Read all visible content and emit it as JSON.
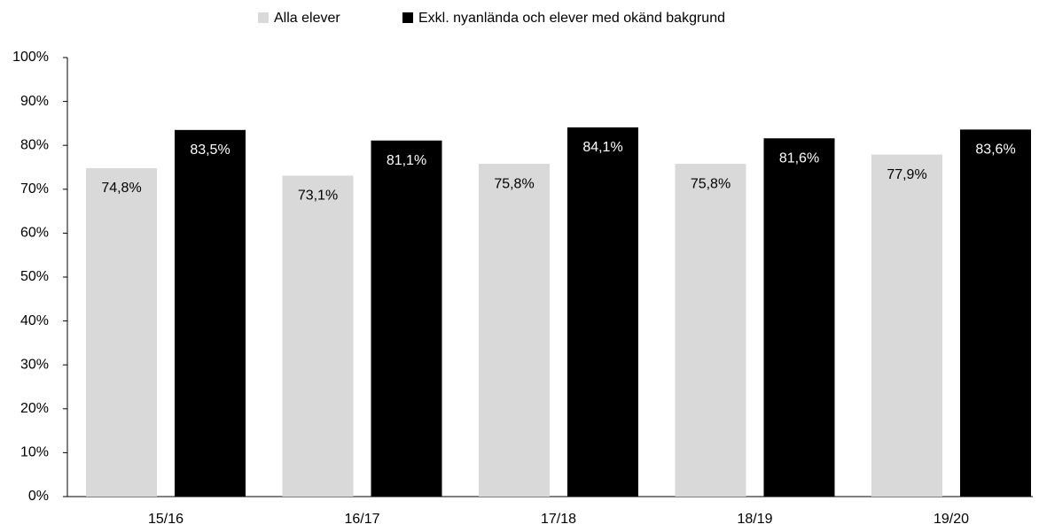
{
  "chart_data": {
    "type": "bar",
    "categories": [
      "15/16",
      "16/17",
      "17/18",
      "18/19",
      "19/20"
    ],
    "series": [
      {
        "name": "Alla elever",
        "color": "#d9d9d9",
        "label_color": "#000000",
        "values": [
          74.8,
          73.1,
          75.8,
          75.8,
          77.9
        ],
        "value_labels": [
          "74,8%",
          "73,1%",
          "75,8%",
          "75,8%",
          "77,9%"
        ]
      },
      {
        "name": "Exkl. nyanlända och elever med okänd bakgrund",
        "color": "#000000",
        "label_color": "#ffffff",
        "values": [
          83.5,
          81.1,
          84.1,
          81.6,
          83.6
        ],
        "value_labels": [
          "83,5%",
          "81,1%",
          "84,1%",
          "81,6%",
          "83,6%"
        ]
      }
    ],
    "ylim": [
      0,
      100
    ],
    "yticks": [
      {
        "value": 0,
        "label": "0%"
      },
      {
        "value": 10,
        "label": "10%"
      },
      {
        "value": 20,
        "label": "20%"
      },
      {
        "value": 30,
        "label": "30%"
      },
      {
        "value": 40,
        "label": "40%"
      },
      {
        "value": 50,
        "label": "50%"
      },
      {
        "value": 60,
        "label": "60%"
      },
      {
        "value": 70,
        "label": "70%"
      },
      {
        "value": 80,
        "label": "80%"
      },
      {
        "value": 90,
        "label": "90%"
      },
      {
        "value": 100,
        "label": "100%"
      }
    ],
    "legend": "top"
  }
}
